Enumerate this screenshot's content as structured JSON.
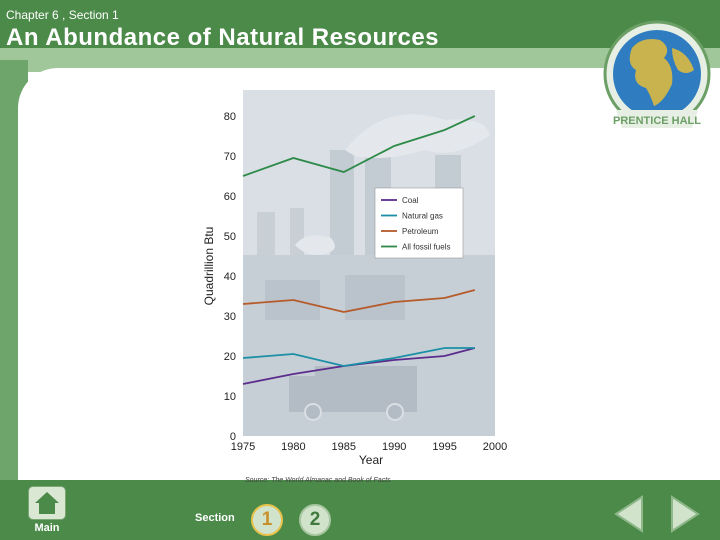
{
  "header": {
    "chapter_label": "Chapter 6 , Section 1",
    "title": "An Abundance of Natural Resources",
    "logo_text": "PRENTICE HALL"
  },
  "footer": {
    "main_label": "Main",
    "section_label": "Section",
    "section_buttons": [
      "1",
      "2"
    ],
    "prev_icon": "left-triangle-icon",
    "next_icon": "right-triangle-icon"
  },
  "colors": {
    "coal": "#5b2d8c",
    "natural_gas": "#1b8fa6",
    "petroleum": "#b65a2a",
    "all_fossil_fuels": "#2e8a48",
    "band": "#4c8a4a"
  },
  "chart_data": {
    "type": "line",
    "xlabel": "Year",
    "ylabel": "Quadrillion Btu",
    "xlim": [
      1975,
      2000
    ],
    "ylim": [
      0,
      80
    ],
    "x_ticks": [
      1975,
      1980,
      1985,
      1990,
      1995,
      2000
    ],
    "y_ticks": [
      0,
      10,
      20,
      30,
      40,
      50,
      60,
      70,
      80
    ],
    "grid": false,
    "legend_position": "right",
    "source": "Source: The World Almanac and Book of Facts",
    "series": [
      {
        "name": "Coal",
        "color": "#5b2d8c",
        "x": [
          1975,
          1980,
          1985,
          1990,
          1995,
          1998
        ],
        "y": [
          13,
          15.5,
          17.5,
          19,
          20,
          22
        ]
      },
      {
        "name": "Natural gas",
        "color": "#1b8fa6",
        "x": [
          1975,
          1980,
          1985,
          1990,
          1995,
          1998
        ],
        "y": [
          19.5,
          20.5,
          17.5,
          19.5,
          22,
          22
        ]
      },
      {
        "name": "Petroleum",
        "color": "#b65a2a",
        "x": [
          1975,
          1980,
          1985,
          1990,
          1995,
          1998
        ],
        "y": [
          33,
          34,
          31,
          33.5,
          34.5,
          36.5
        ]
      },
      {
        "name": "All fossil fuels",
        "color": "#2e8a48",
        "x": [
          1975,
          1980,
          1985,
          1990,
          1995,
          1998
        ],
        "y": [
          65,
          69.5,
          66,
          72.5,
          76.5,
          80
        ]
      }
    ]
  }
}
